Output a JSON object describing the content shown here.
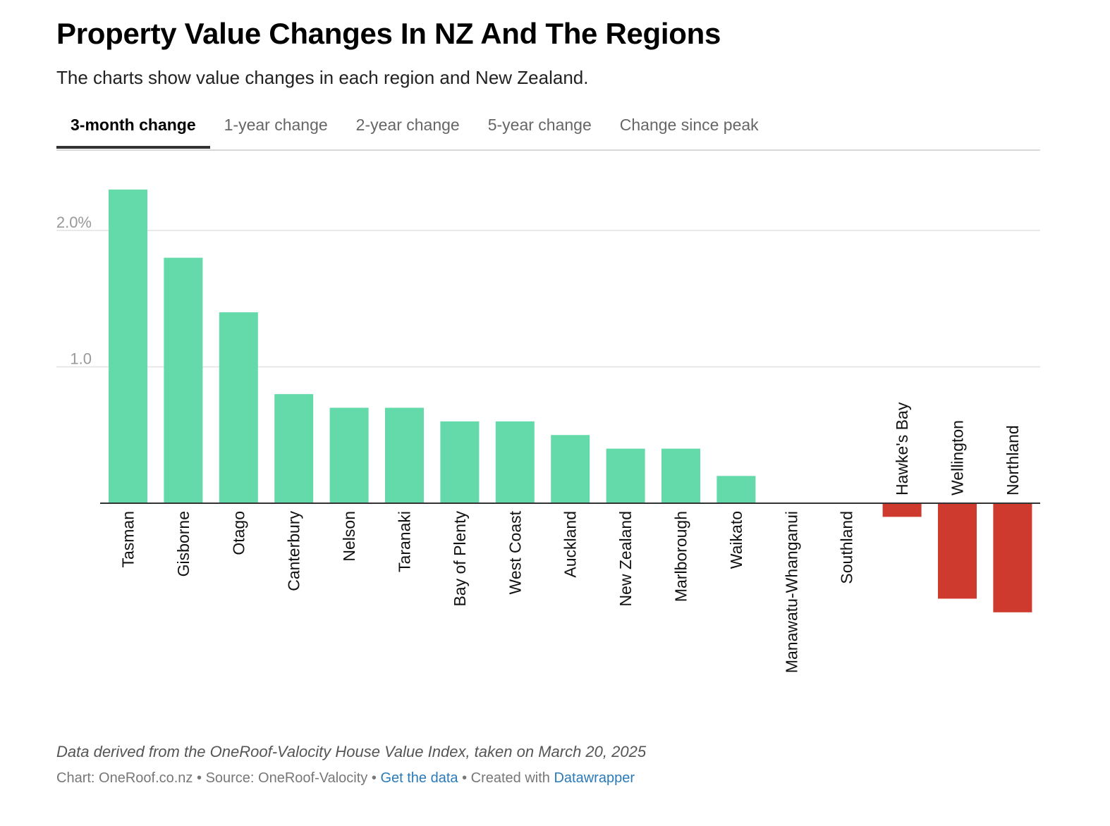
{
  "title": "Property Value Changes In NZ And The Regions",
  "subtitle": "The charts show value changes in each region and New Zealand.",
  "tabs": [
    {
      "label": "3-month change",
      "active": true
    },
    {
      "label": "1-year change",
      "active": false
    },
    {
      "label": "2-year change",
      "active": false
    },
    {
      "label": "5-year change",
      "active": false
    },
    {
      "label": "Change since peak",
      "active": false
    }
  ],
  "colors": {
    "positive": "#64d9a9",
    "negative": "#cf3a2f",
    "gridline": "#e2e2e2",
    "axis": "#333333",
    "tick_text": "#999999",
    "link": "#2a7ab8"
  },
  "chart_data": {
    "type": "bar",
    "categories": [
      "Tasman",
      "Gisborne",
      "Otago",
      "Canterbury",
      "Nelson",
      "Taranaki",
      "Bay of Plenty",
      "West Coast",
      "Auckland",
      "New Zealand",
      "Marlborough",
      "Waikato",
      "Manawatu-Whanganui",
      "Southland",
      "Hawke's Bay",
      "Wellington",
      "Northland"
    ],
    "values": [
      2.3,
      1.8,
      1.4,
      0.8,
      0.7,
      0.7,
      0.6,
      0.6,
      0.5,
      0.4,
      0.4,
      0.2,
      0.0,
      0.0,
      -0.1,
      -0.7,
      -0.8
    ],
    "yticks": [
      {
        "value": 2.0,
        "label": "2.0%"
      },
      {
        "value": 1.0,
        "label": "1.0"
      }
    ],
    "title": "",
    "xlabel": "",
    "ylabel": "",
    "grid": true,
    "legend": "none"
  },
  "notes": "Data derived from the OneRoof-Valocity House Value Index, taken on March 20, 2025",
  "footer": {
    "chart_credit": "Chart: OneRoof.co.nz",
    "separator": " • ",
    "source": "Source: OneRoof-Valocity",
    "get_data": "Get the data",
    "created_with": "Created with",
    "datawrapper": "Datawrapper"
  }
}
